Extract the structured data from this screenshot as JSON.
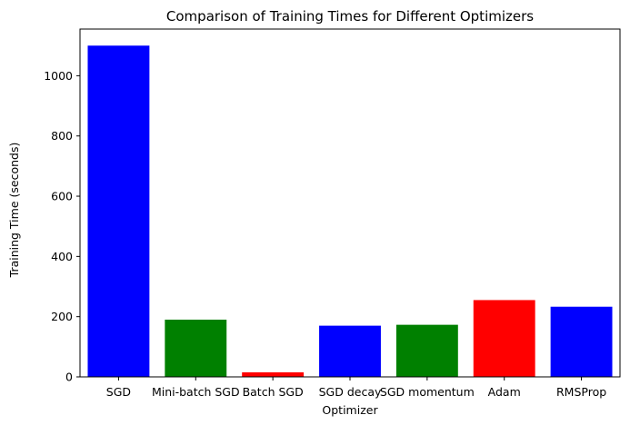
{
  "chart_data": {
    "type": "bar",
    "title": "Comparison of Training Times for Different Optimizers",
    "xlabel": "Optimizer",
    "ylabel": "Training Time (seconds)",
    "categories": [
      "SGD",
      "Mini-batch SGD",
      "Batch SGD",
      "SGD decay",
      "SGD momentum",
      "Adam",
      "RMSProp"
    ],
    "values": [
      1100,
      190,
      15,
      170,
      173,
      255,
      233
    ],
    "colors": [
      "#0000ff",
      "#008000",
      "#ff0000",
      "#0000ff",
      "#008000",
      "#ff0000",
      "#0000ff"
    ],
    "ylim": [
      0,
      1155
    ],
    "yticks": [
      0,
      200,
      400,
      600,
      800,
      1000
    ],
    "grid": false,
    "legend": "none"
  }
}
